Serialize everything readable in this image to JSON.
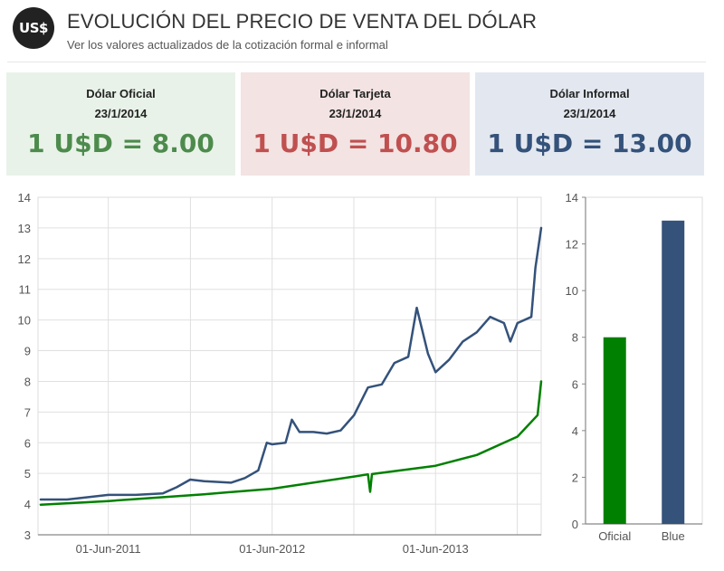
{
  "header": {
    "logo_text": "US$",
    "title": "EVOLUCIÓN DEL PRECIO DE VENTA DEL DÓLAR",
    "subtitle": "Ver los valores actualizados de la cotización formal e informal"
  },
  "rates": [
    {
      "label": "Dólar Oficial",
      "date": "23/1/2014",
      "value": "1 U$D = 8.00",
      "color": "#4d8b4d"
    },
    {
      "label": "Dólar Tarjeta",
      "date": "23/1/2014",
      "value": "1 U$D = 10.80",
      "color": "#c05050"
    },
    {
      "label": "Dólar Informal",
      "date": "23/1/2014",
      "value": "1 U$D = 13.00",
      "color": "#34527a"
    }
  ],
  "chart_data": [
    {
      "type": "line",
      "x_tick_labels": [
        "01-Jun-2011",
        "01-Jun-2012",
        "01-Jun-2013"
      ],
      "x_ticks": [
        "2011-06-01",
        "2012-06-01",
        "2013-06-01"
      ],
      "xlim": [
        "2010-12-26",
        "2014-01-23"
      ],
      "ylim": [
        3,
        14
      ],
      "yticks": [
        3,
        4,
        5,
        6,
        7,
        8,
        9,
        10,
        11,
        12,
        13,
        14
      ],
      "grid": true,
      "series": [
        {
          "color": "#34527a",
          "points": [
            [
              "2011-01-01",
              4.15
            ],
            [
              "2011-03-01",
              4.15
            ],
            [
              "2011-05-01",
              4.25
            ],
            [
              "2011-06-01",
              4.3
            ],
            [
              "2011-08-01",
              4.3
            ],
            [
              "2011-10-01",
              4.35
            ],
            [
              "2011-11-01",
              4.55
            ],
            [
              "2011-12-01",
              4.8
            ],
            [
              "2012-01-01",
              4.75
            ],
            [
              "2012-03-01",
              4.7
            ],
            [
              "2012-04-01",
              4.85
            ],
            [
              "2012-05-01",
              5.1
            ],
            [
              "2012-05-20",
              6.0
            ],
            [
              "2012-06-01",
              5.95
            ],
            [
              "2012-07-01",
              6.0
            ],
            [
              "2012-07-15",
              6.75
            ],
            [
              "2012-08-01",
              6.35
            ],
            [
              "2012-09-01",
              6.35
            ],
            [
              "2012-10-01",
              6.3
            ],
            [
              "2012-11-01",
              6.4
            ],
            [
              "2012-12-01",
              6.9
            ],
            [
              "2013-01-01",
              7.8
            ],
            [
              "2013-02-01",
              7.9
            ],
            [
              "2013-03-01",
              8.6
            ],
            [
              "2013-04-01",
              8.8
            ],
            [
              "2013-04-20",
              10.4
            ],
            [
              "2013-05-15",
              8.9
            ],
            [
              "2013-06-01",
              8.3
            ],
            [
              "2013-07-01",
              8.7
            ],
            [
              "2013-08-01",
              9.3
            ],
            [
              "2013-09-01",
              9.6
            ],
            [
              "2013-10-01",
              10.1
            ],
            [
              "2013-11-01",
              9.9
            ],
            [
              "2013-11-15",
              9.3
            ],
            [
              "2013-12-01",
              9.9
            ],
            [
              "2014-01-01",
              10.1
            ],
            [
              "2014-01-10",
              11.7
            ],
            [
              "2014-01-23",
              13.0
            ]
          ]
        },
        {
          "color": "#008000",
          "points": [
            [
              "2011-01-01",
              3.98
            ],
            [
              "2011-06-01",
              4.1
            ],
            [
              "2012-01-01",
              4.32
            ],
            [
              "2012-06-01",
              4.5
            ],
            [
              "2012-12-01",
              4.9
            ],
            [
              "2013-01-01",
              4.97
            ],
            [
              "2013-01-06",
              4.4
            ],
            [
              "2013-01-10",
              4.98
            ],
            [
              "2013-06-01",
              5.25
            ],
            [
              "2013-09-01",
              5.6
            ],
            [
              "2013-12-01",
              6.2
            ],
            [
              "2014-01-15",
              6.9
            ],
            [
              "2014-01-23",
              8.0
            ]
          ]
        }
      ]
    },
    {
      "type": "bar",
      "categories": [
        "Oficial",
        "Blue"
      ],
      "values": [
        8.0,
        13.0
      ],
      "colors": [
        "#008000",
        "#34527a"
      ],
      "ylim": [
        0,
        14
      ],
      "yticks": [
        0,
        2,
        4,
        6,
        8,
        10,
        12,
        14
      ],
      "grid": false
    }
  ]
}
